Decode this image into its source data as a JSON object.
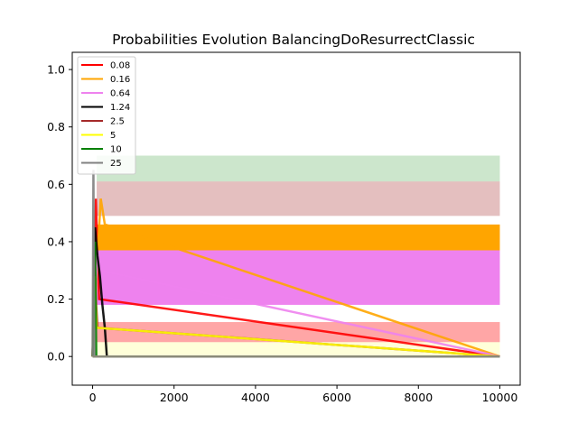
{
  "chart_data": {
    "type": "line",
    "title": "Probabilities Evolution BalancingDoResurrectClassic",
    "xlabel": "",
    "ylabel": "",
    "xlim": [
      -500,
      10500
    ],
    "ylim": [
      -0.1,
      1.06
    ],
    "x_ticks": [
      0,
      2000,
      4000,
      6000,
      8000,
      10000
    ],
    "y_ticks": [
      0.0,
      0.2,
      0.4,
      0.6,
      0.8,
      1.0
    ],
    "x_tick_labels": [
      "0",
      "2000",
      "4000",
      "6000",
      "8000",
      "10000"
    ],
    "y_tick_labels": [
      "0.0",
      "0.2",
      "0.4",
      "0.6",
      "0.8",
      "1.0"
    ],
    "grid": false,
    "legend_position": "top-left",
    "series": [
      {
        "name": "0.08",
        "color": "#ff0000",
        "band": [
          0.05,
          0.12
        ],
        "band_alpha": 0.35,
        "x_end": 10000,
        "transient": {
          "x": [
            0,
            40,
            80,
            120,
            160
          ],
          "y": [
            0.0,
            0.25,
            0.55,
            0.35,
            0.2
          ]
        }
      },
      {
        "name": "0.16",
        "color": "#ffa500",
        "band": [
          0.37,
          0.46
        ],
        "band_alpha": 1.0,
        "x_end": 10000,
        "transient": {
          "x": [
            0,
            100,
            200,
            300
          ],
          "y": [
            0.0,
            0.3,
            0.55,
            0.46
          ]
        }
      },
      {
        "name": "0.64",
        "color": "#ee82ee",
        "band": [
          0.18,
          0.37
        ],
        "band_alpha": 1.0,
        "x_end": 10000,
        "transient": {
          "x": [
            0,
            60,
            120,
            180
          ],
          "y": [
            0.0,
            0.2,
            0.37,
            0.3
          ]
        }
      },
      {
        "name": "1.24",
        "color": "#000000",
        "band": [
          0.0,
          0.0
        ],
        "band_alpha": 0.0,
        "x_end": 10000,
        "transient": {
          "x": [
            0,
            60,
            120,
            180,
            240,
            300,
            350
          ],
          "y": [
            0.0,
            0.45,
            0.35,
            0.28,
            0.18,
            0.1,
            0.0
          ]
        }
      },
      {
        "name": "2.5",
        "color": "#a52a2a",
        "band": [
          0.49,
          0.61
        ],
        "band_alpha": 0.3,
        "x_end": 10000,
        "transient": {
          "x": [
            0,
            40,
            80,
            120
          ],
          "y": [
            0.0,
            0.35,
            0.2,
            0.1
          ]
        }
      },
      {
        "name": "5",
        "color": "#ffff00",
        "band": [
          0.0,
          0.05
        ],
        "band_alpha": 0.15,
        "x_end": 10000,
        "transient": {
          "x": [
            0,
            50,
            100
          ],
          "y": [
            0.0,
            0.28,
            0.1
          ]
        }
      },
      {
        "name": "10",
        "color": "#008000",
        "band": [
          0.61,
          0.7
        ],
        "band_alpha": 0.2,
        "x_end": 10000,
        "transient": {
          "x": [
            0,
            30,
            60,
            90
          ],
          "y": [
            0.0,
            0.18,
            0.4,
            0.0
          ]
        }
      },
      {
        "name": "25",
        "color": "#808080",
        "band": [
          0.0,
          0.0
        ],
        "band_alpha": 0.0,
        "x_end": 10000,
        "transient": {
          "x": [
            0,
            20,
            40
          ],
          "y": [
            0.0,
            0.65,
            0.0
          ]
        }
      }
    ]
  }
}
